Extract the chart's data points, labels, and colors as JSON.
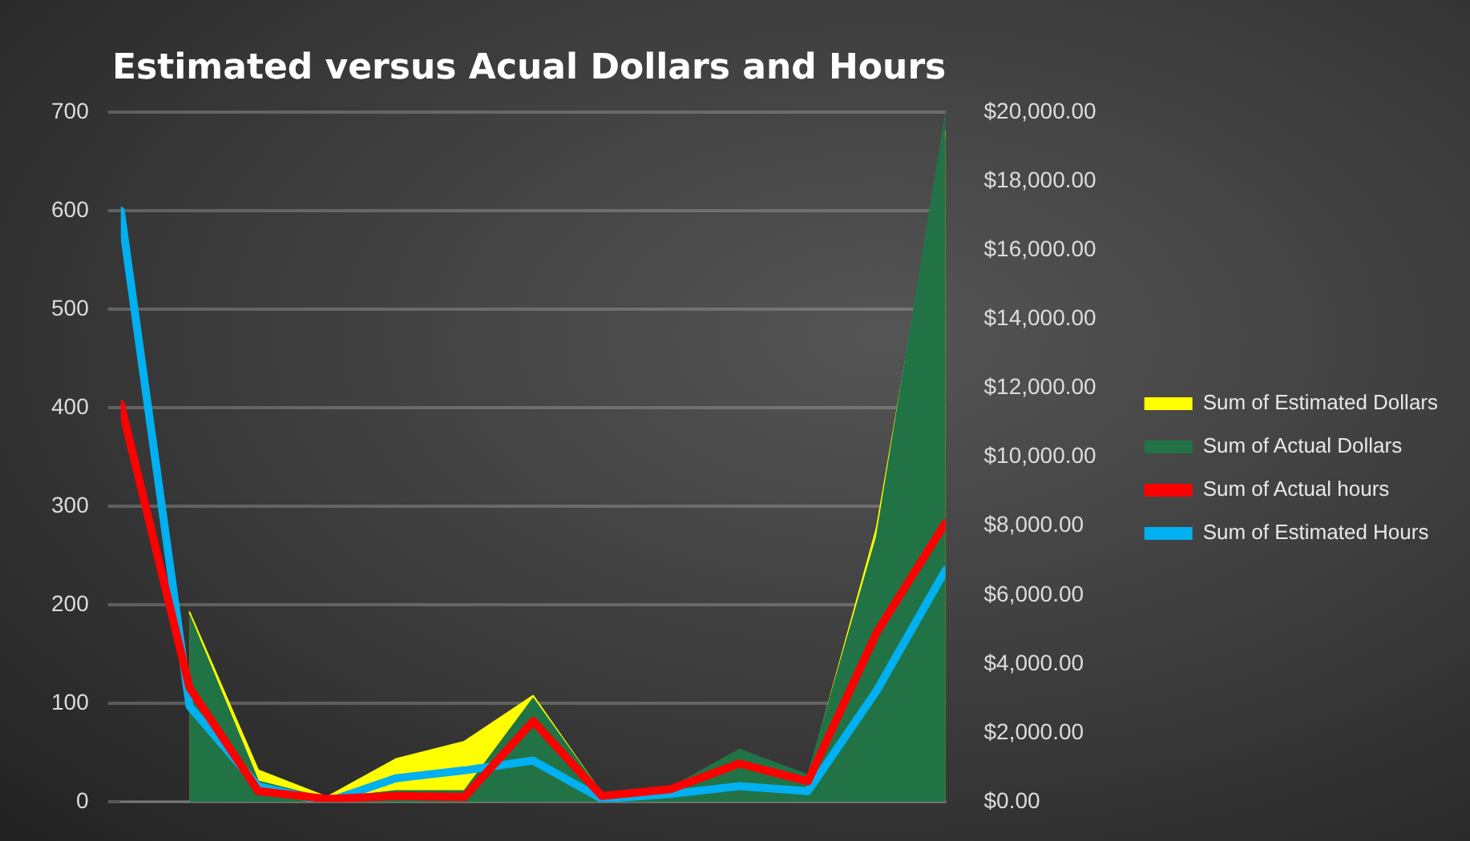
{
  "chart_data": {
    "type": "area",
    "title": "Estimated versus Acual Dollars and Hours",
    "categories": [
      null,
      null,
      null,
      null,
      null,
      null,
      null,
      null,
      null,
      null,
      null,
      null,
      null
    ],
    "series": [
      {
        "name": "Sum of Estimated Dollars",
        "axis": "y2",
        "color": "#ffff00",
        "values": [
          null,
          5500,
          920,
          140,
          1240,
          1750,
          3080,
          230,
          410,
          1240,
          690,
          7950,
          19450
        ]
      },
      {
        "name": "Sum of Actual Dollars",
        "axis": "y2",
        "color": "#217346",
        "values": [
          null,
          5400,
          600,
          100,
          320,
          320,
          3000,
          230,
          410,
          1520,
          780,
          7680,
          19900
        ]
      },
      {
        "name": "Sum of Actual hours",
        "type": "line",
        "color": "#ff0000",
        "values": [
          404,
          116,
          11,
          3,
          6,
          5,
          82,
          6,
          13,
          39,
          21,
          172,
          283
        ]
      },
      {
        "name": "Sum of Estimated Hours",
        "type": "line",
        "color": "#00b0f0",
        "values": [
          600,
          97,
          16,
          0,
          24,
          32,
          42,
          3,
          8,
          16,
          11,
          113,
          235
        ]
      }
    ],
    "ylim": [
      0,
      700
    ],
    "yticks": [
      0,
      100,
      200,
      300,
      400,
      500,
      600,
      700
    ],
    "y2lim": [
      0,
      20000
    ],
    "y2ticks": [
      {
        "value": 0,
        "label": "$0.00"
      },
      {
        "value": 2000,
        "label": "$2,000.00"
      },
      {
        "value": 4000,
        "label": "$4,000.00"
      },
      {
        "value": 6000,
        "label": "$6,000.00"
      },
      {
        "value": 8000,
        "label": "$8,000.00"
      },
      {
        "value": 10000,
        "label": "$10,000.00"
      },
      {
        "value": 12000,
        "label": "$12,000.00"
      },
      {
        "value": 14000,
        "label": "$14,000.00"
      },
      {
        "value": 16000,
        "label": "$16,000.00"
      },
      {
        "value": 18000,
        "label": "$18,000.00"
      },
      {
        "value": 20000,
        "label": "$20,000.00"
      }
    ],
    "grid": "y",
    "legend": "right",
    "tick_labels": "y",
    "marker": "none",
    "line_style": "solid"
  }
}
